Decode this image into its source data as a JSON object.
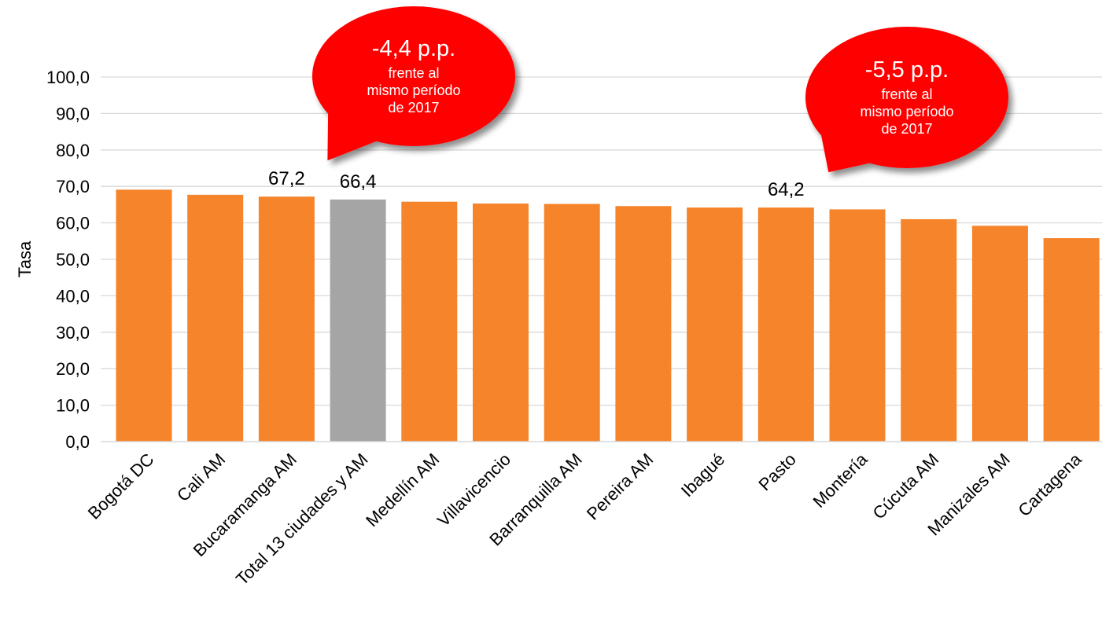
{
  "chart_data": {
    "type": "bar",
    "ylabel": "Tasa",
    "ylim": [
      0,
      100
    ],
    "yticks": [
      "0,0",
      "10,0",
      "20,0",
      "30,0",
      "40,0",
      "50,0",
      "60,0",
      "70,0",
      "80,0",
      "90,0",
      "100,0"
    ],
    "grid": true,
    "categories": [
      "Bogotá DC",
      "Cali AM",
      "Bucaramanga AM",
      "Total 13 ciudades y AM",
      "Medellín AM",
      "Villavicencio",
      "Barranquilla AM",
      "Pereira AM",
      "Ibagué",
      "Pasto",
      "Montería",
      "Cúcuta AM",
      "Manizales AM",
      "Cartagena"
    ],
    "values": [
      69.1,
      67.7,
      67.2,
      66.4,
      65.8,
      65.3,
      65.2,
      64.6,
      64.2,
      64.2,
      63.7,
      61.0,
      59.2,
      55.8
    ],
    "data_labels": [
      {
        "category": "Bucaramanga AM",
        "text": "67,2"
      },
      {
        "category": "Total 13 ciudades y AM",
        "text": "66,4"
      },
      {
        "category": "Pasto",
        "text": "64,2"
      }
    ],
    "highlight_category": "Total 13 ciudades y AM",
    "colors": {
      "bar": "#f5842b",
      "highlight_bar": "#a5a5a5",
      "gridline": "#d9d9d9",
      "callout": "#ff0000"
    }
  },
  "callouts": [
    {
      "headline": "-4,4 p.p.",
      "lines": [
        "frente al",
        "mismo período",
        "de 2017"
      ],
      "points_to": "Bucaramanga AM"
    },
    {
      "headline": "-5,5 p.p.",
      "lines": [
        "frente al",
        "mismo período",
        "de 2017"
      ],
      "points_to": "Pasto"
    }
  ]
}
